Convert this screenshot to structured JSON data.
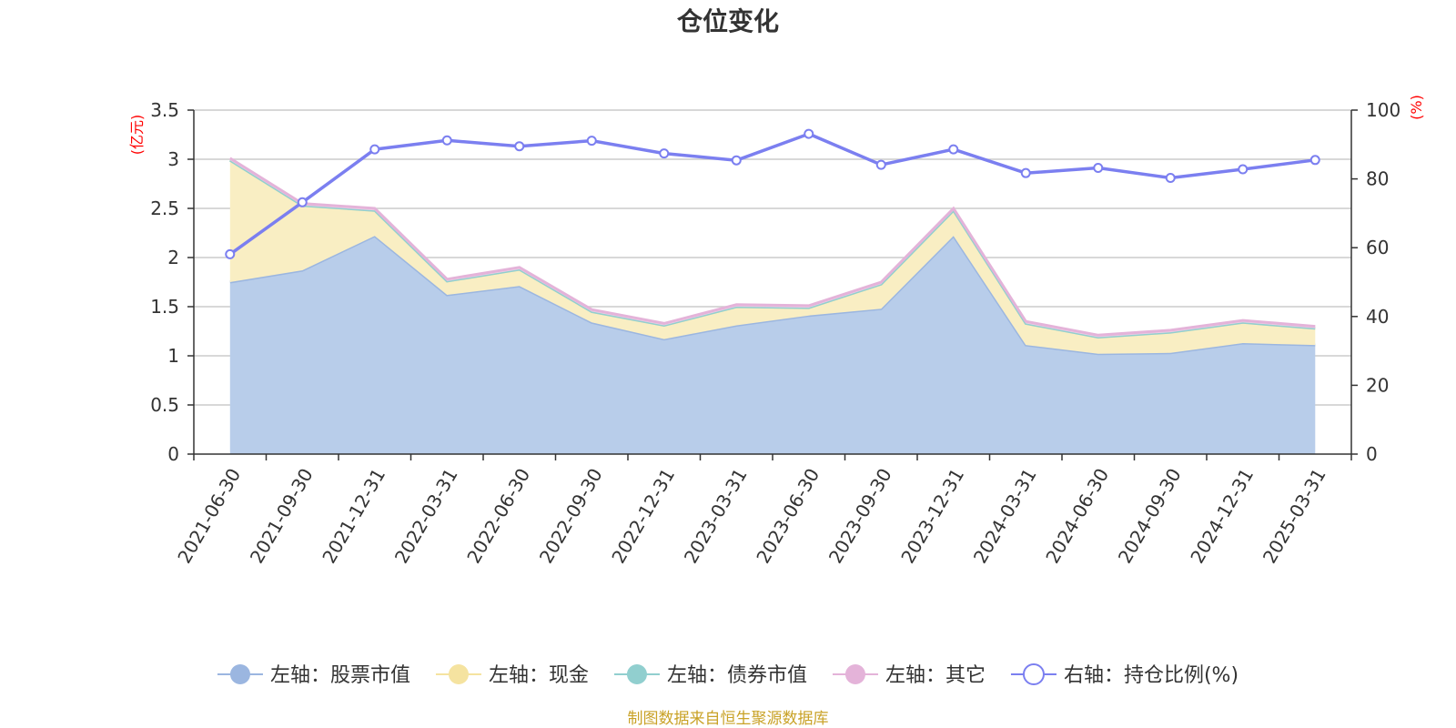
{
  "chart_data": {
    "type": "area",
    "title": "仓位变化",
    "left_axis": {
      "unit": "(亿元)",
      "ticks": [
        "0",
        "0.5",
        "1",
        "1.5",
        "2",
        "2.5",
        "3",
        "3.5"
      ],
      "ylim": [
        0,
        3.5
      ]
    },
    "right_axis": {
      "unit": "(%)",
      "ticks": [
        "0",
        "20",
        "40",
        "60",
        "80",
        "100"
      ],
      "ylim": [
        0,
        100
      ]
    },
    "categories": [
      "2021-06-30",
      "2021-09-30",
      "2021-12-31",
      "2022-03-31",
      "2022-06-30",
      "2022-09-30",
      "2022-12-31",
      "2023-03-31",
      "2023-06-30",
      "2023-09-30",
      "2023-12-31",
      "2024-03-31",
      "2024-06-30",
      "2024-09-30",
      "2024-12-31",
      "2025-03-31"
    ],
    "series": [
      {
        "name": "左轴：股票市值",
        "axis": "left",
        "kind": "stacked-area",
        "color": "#9bb6e0",
        "fill": "#b8cdea",
        "values": [
          1.75,
          1.87,
          2.22,
          1.62,
          1.71,
          1.34,
          1.17,
          1.31,
          1.41,
          1.48,
          2.22,
          1.11,
          1.02,
          1.03,
          1.13,
          1.11
        ]
      },
      {
        "name": "左轴：现金",
        "axis": "left",
        "kind": "stacked-area",
        "color": "#f5e3a0",
        "fill": "#f9eec3",
        "values": [
          1.24,
          0.66,
          0.26,
          0.14,
          0.17,
          0.11,
          0.14,
          0.19,
          0.08,
          0.25,
          0.26,
          0.22,
          0.17,
          0.21,
          0.21,
          0.17
        ]
      },
      {
        "name": "左轴：债券市值",
        "axis": "left",
        "kind": "stacked-area",
        "color": "#91cfcf",
        "fill": "#c4e6e6",
        "values": [
          0,
          0,
          0,
          0,
          0,
          0,
          0,
          0,
          0,
          0,
          0,
          0,
          0,
          0,
          0,
          0
        ]
      },
      {
        "name": "左轴：其它",
        "axis": "left",
        "kind": "stacked-area",
        "color": "#e4b3d9",
        "fill": "#efd0e7",
        "values": [
          0.02,
          0.02,
          0.02,
          0.02,
          0.02,
          0.02,
          0.02,
          0.02,
          0.02,
          0.02,
          0.02,
          0.02,
          0.02,
          0.02,
          0.02,
          0.02
        ]
      },
      {
        "name": "右轴：持仓比例(%)",
        "axis": "right",
        "kind": "line",
        "color": "#7b7ff0",
        "values": [
          58.1,
          73.2,
          88.6,
          91.2,
          89.5,
          91.1,
          87.4,
          85.4,
          93.1,
          84.1,
          88.6,
          81.7,
          83.2,
          80.3,
          82.8,
          85.5
        ]
      }
    ],
    "grid": true,
    "legend_position": "bottom"
  },
  "source": "制图数据来自恒生聚源数据库"
}
